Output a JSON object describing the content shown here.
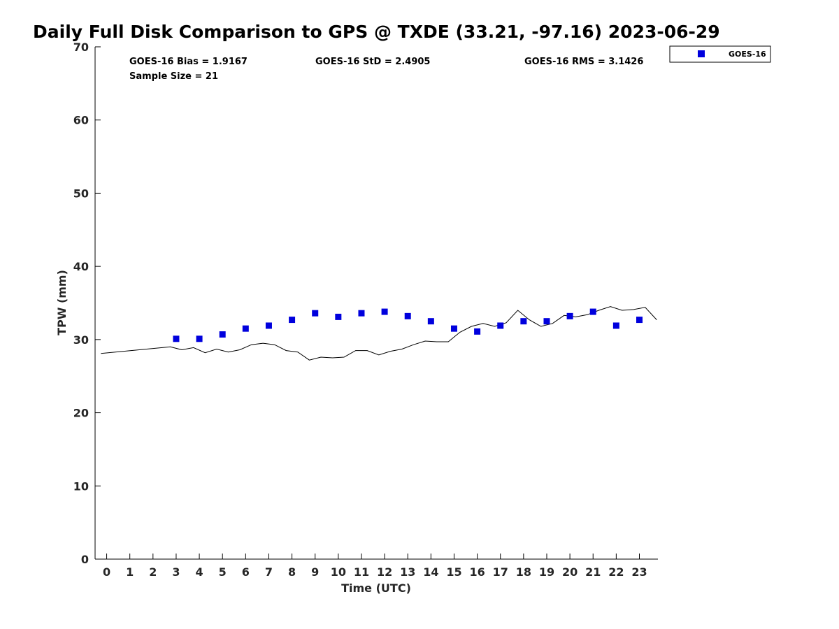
{
  "chart_data": {
    "type": "scatter",
    "title": "Daily Full Disk Comparison to GPS @ TXDE (33.21, -97.16) 2023-06-29",
    "xlabel": "Time (UTC)",
    "ylabel": "TPW (mm)",
    "xlim": [
      -0.5,
      23.8
    ],
    "ylim": [
      0,
      70
    ],
    "x_ticks": [
      "0",
      "1",
      "2",
      "3",
      "4",
      "5",
      "6",
      "7",
      "8",
      "9",
      "10",
      "11",
      "12",
      "13",
      "14",
      "15",
      "16",
      "17",
      "18",
      "19",
      "20",
      "21",
      "22",
      "23"
    ],
    "y_ticks": [
      "0",
      "10",
      "20",
      "30",
      "40",
      "50",
      "60",
      "70"
    ],
    "grid": false,
    "legend_position": "outside-top-right",
    "stats": {
      "bias": "GOES-16 Bias = 1.9167",
      "std": "GOES-16 StD = 2.4905",
      "rms": "GOES-16 RMS = 3.1426",
      "sample": "Sample Size = 21"
    },
    "series": [
      {
        "name": "GOES-16",
        "kind": "scatter",
        "color": "#0000dd",
        "marker": "square",
        "points": [
          [
            3,
            30.1
          ],
          [
            4,
            30.1
          ],
          [
            5,
            30.7
          ],
          [
            6,
            31.5
          ],
          [
            7,
            31.9
          ],
          [
            8,
            32.7
          ],
          [
            9,
            33.6
          ],
          [
            10,
            33.1
          ],
          [
            11,
            33.6
          ],
          [
            12,
            33.8
          ],
          [
            13,
            33.2
          ],
          [
            14,
            32.5
          ],
          [
            15,
            31.5
          ],
          [
            16,
            31.1
          ],
          [
            17,
            31.9
          ],
          [
            18,
            32.5
          ],
          [
            19,
            32.5
          ],
          [
            20,
            33.2
          ],
          [
            21,
            33.8
          ],
          [
            22,
            31.9
          ],
          [
            23,
            32.7
          ]
        ]
      },
      {
        "kind": "line",
        "color": "#000000",
        "points": [
          [
            -0.25,
            28.1
          ],
          [
            2.75,
            29.0
          ],
          [
            3.25,
            28.6
          ],
          [
            3.75,
            28.9
          ],
          [
            4.25,
            28.2
          ],
          [
            4.75,
            28.7
          ],
          [
            5.25,
            28.3
          ],
          [
            5.75,
            28.6
          ],
          [
            6.25,
            29.3
          ],
          [
            6.75,
            29.5
          ],
          [
            7.25,
            29.3
          ],
          [
            7.75,
            28.5
          ],
          [
            8.25,
            28.3
          ],
          [
            8.75,
            27.2
          ],
          [
            9.25,
            27.6
          ],
          [
            9.75,
            27.5
          ],
          [
            10.25,
            27.6
          ],
          [
            10.75,
            28.5
          ],
          [
            11.25,
            28.5
          ],
          [
            11.75,
            27.9
          ],
          [
            12.25,
            28.4
          ],
          [
            12.75,
            28.7
          ],
          [
            13.25,
            29.3
          ],
          [
            13.75,
            29.8
          ],
          [
            14.25,
            29.7
          ],
          [
            14.75,
            29.7
          ],
          [
            15.25,
            31.0
          ],
          [
            15.75,
            31.8
          ],
          [
            16.25,
            32.2
          ],
          [
            16.75,
            31.8
          ],
          [
            17.25,
            32.3
          ],
          [
            17.75,
            34.0
          ],
          [
            18.25,
            32.7
          ],
          [
            18.75,
            31.8
          ],
          [
            19.25,
            32.2
          ],
          [
            19.75,
            33.3
          ],
          [
            20.25,
            33.1
          ],
          [
            20.75,
            33.4
          ],
          [
            21.25,
            34.0
          ],
          [
            21.75,
            34.5
          ],
          [
            22.25,
            34.0
          ],
          [
            22.75,
            34.1
          ],
          [
            23.25,
            34.4
          ],
          [
            23.75,
            32.7
          ]
        ]
      }
    ]
  }
}
